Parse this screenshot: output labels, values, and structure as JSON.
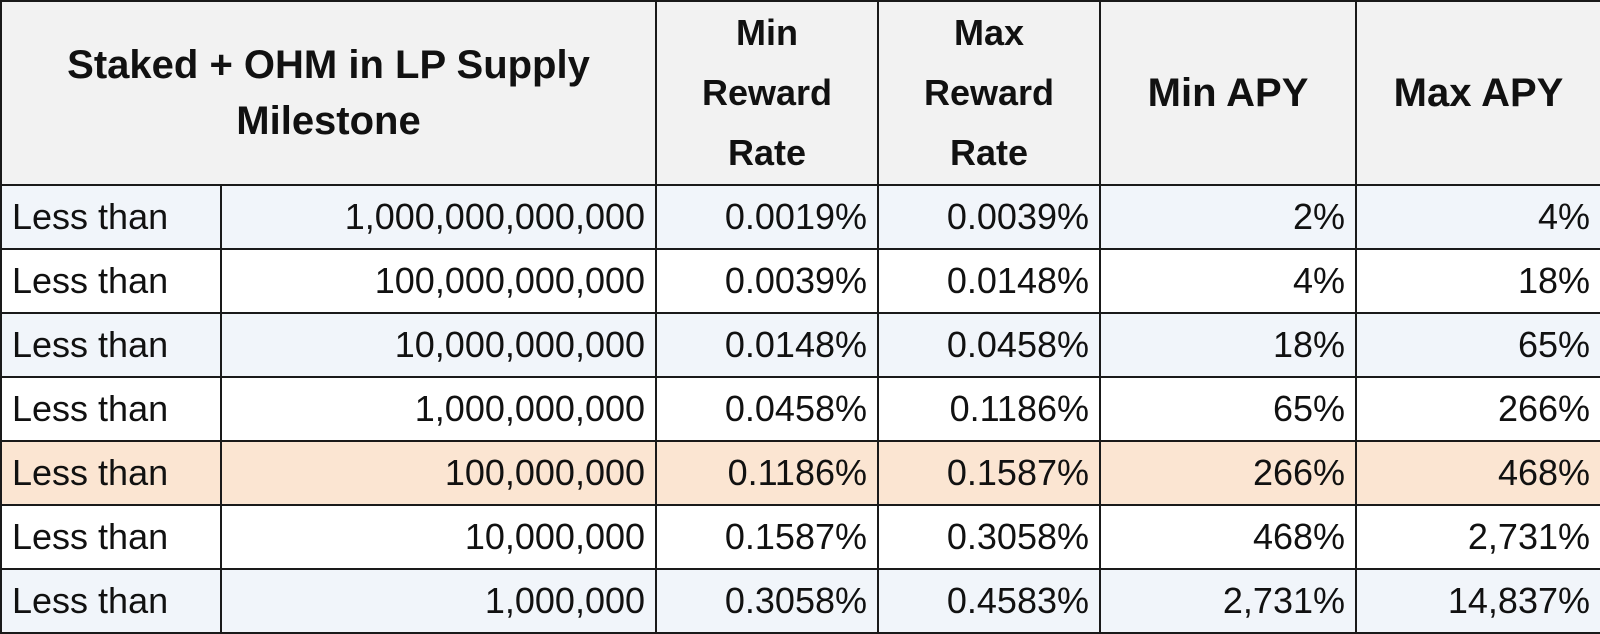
{
  "headers": {
    "milestone": "Staked + OHM in LP Supply Milestone",
    "milestone_line1": "Staked + OHM in LP Supply",
    "milestone_line2": "Milestone",
    "min_reward_rate": [
      "Min",
      "Reward",
      "Rate"
    ],
    "max_reward_rate": [
      "Max",
      "Reward",
      "Rate"
    ],
    "min_apy": "Min APY",
    "max_apy": "Max APY"
  },
  "rows": [
    {
      "label": "Less than",
      "milestone": "1,000,000,000,000",
      "min_rate": "0.0019%",
      "max_rate": "0.0039%",
      "min_apy": "2%",
      "max_apy": "4%",
      "style": "shade"
    },
    {
      "label": "Less than",
      "milestone": "100,000,000,000",
      "min_rate": "0.0039%",
      "max_rate": "0.0148%",
      "min_apy": "4%",
      "max_apy": "18%",
      "style": "plain"
    },
    {
      "label": "Less than",
      "milestone": "10,000,000,000",
      "min_rate": "0.0148%",
      "max_rate": "0.0458%",
      "min_apy": "18%",
      "max_apy": "65%",
      "style": "shade"
    },
    {
      "label": "Less than",
      "milestone": "1,000,000,000",
      "min_rate": "0.0458%",
      "max_rate": "0.1186%",
      "min_apy": "65%",
      "max_apy": "266%",
      "style": "plain"
    },
    {
      "label": "Less than",
      "milestone": "100,000,000",
      "min_rate": "0.1186%",
      "max_rate": "0.1587%",
      "min_apy": "266%",
      "max_apy": "468%",
      "style": "highlight"
    },
    {
      "label": "Less than",
      "milestone": "10,000,000",
      "min_rate": "0.1587%",
      "max_rate": "0.3058%",
      "min_apy": "468%",
      "max_apy": "2,731%",
      "style": "plain"
    },
    {
      "label": "Less than",
      "milestone": "1,000,000",
      "min_rate": "0.3058%",
      "max_rate": "0.4583%",
      "min_apy": "2,731%",
      "max_apy": "14,837%",
      "style": "shade"
    }
  ],
  "colors": {
    "header_bg": "#f2f2f2",
    "row_shade": "#f1f5fa",
    "row_plain": "#ffffff",
    "row_highlight": "#fbe5d2",
    "border": "#1a1a1a"
  }
}
